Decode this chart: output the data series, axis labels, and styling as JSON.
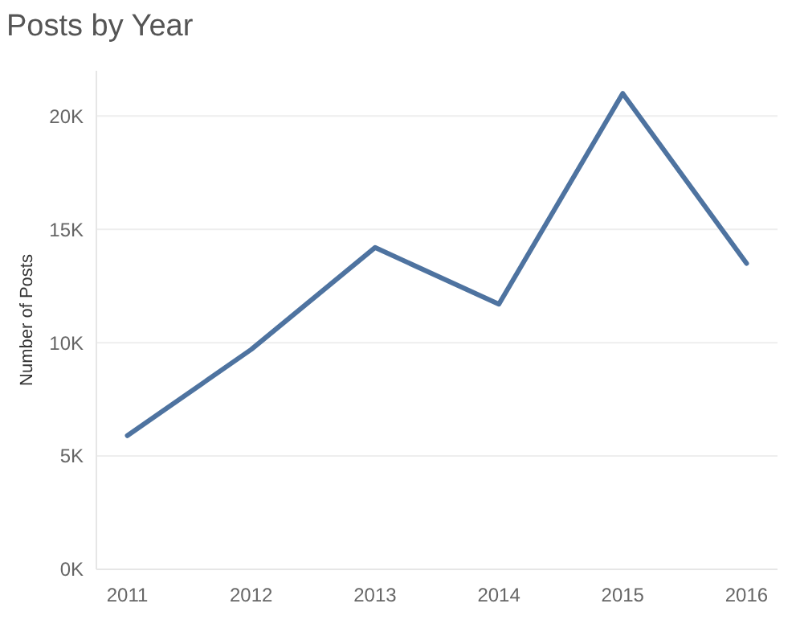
{
  "chart_data": {
    "type": "line",
    "title": "Posts by Year",
    "ylabel": "Number of Posts",
    "categories": [
      "2011",
      "2012",
      "2013",
      "2014",
      "2015",
      "2016"
    ],
    "series": [
      {
        "color": "#4e73a0",
        "values": [
          5900,
          9700,
          14200,
          11700,
          21000,
          13500
        ]
      }
    ],
    "ylim": [
      0,
      22000
    ],
    "yticks": [
      {
        "value": 0,
        "label": "0K"
      },
      {
        "value": 5000,
        "label": "5K"
      },
      {
        "value": 10000,
        "label": "10K"
      },
      {
        "value": 15000,
        "label": "15K"
      },
      {
        "value": 20000,
        "label": "20K"
      }
    ],
    "grid": "y",
    "line_style": "solid",
    "marker": "none"
  }
}
